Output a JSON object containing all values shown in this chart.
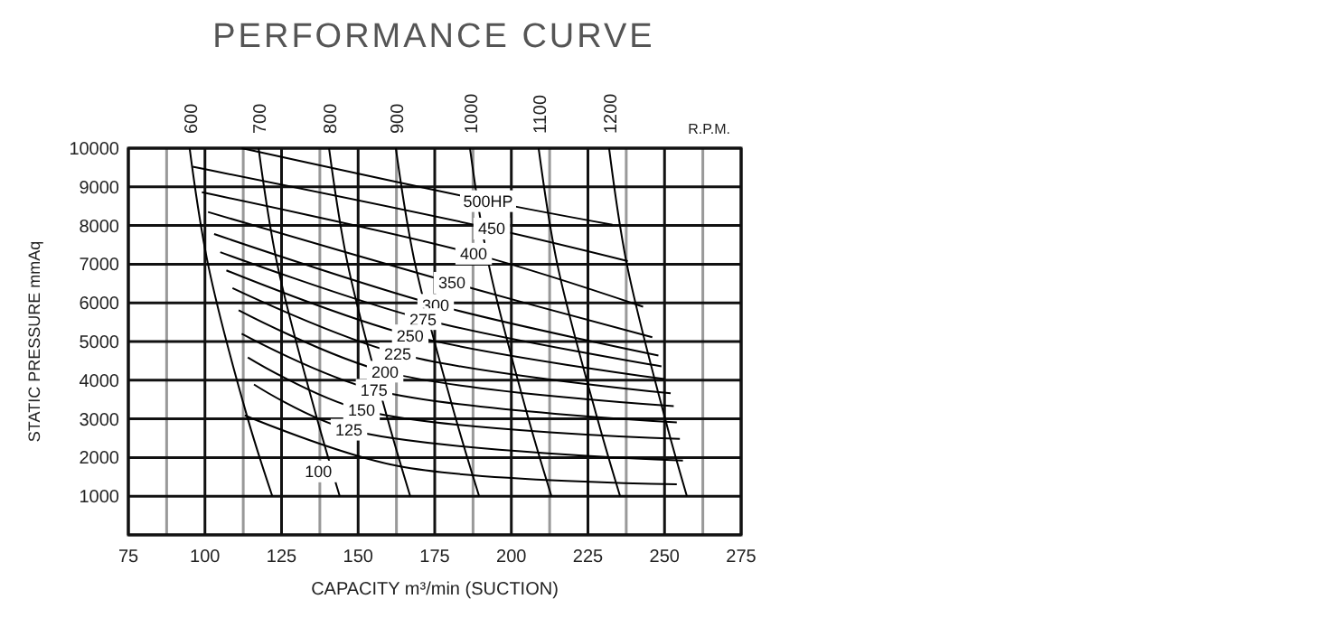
{
  "chart_data": {
    "type": "line",
    "title": "PERFORMANCE CURVE",
    "xlabel": "CAPACITY m³/min (SUCTION)",
    "ylabel": "STATIC PRESSURE mmAq",
    "xlim": [
      75,
      275
    ],
    "ylim": [
      0,
      10000
    ],
    "xticks": [
      75,
      {
        "value": 87.5,
        "label": null
      },
      100,
      {
        "value": 112.5,
        "label": null
      },
      125,
      {
        "value": 137.5,
        "label": null
      },
      150,
      {
        "value": 162.5,
        "label": null
      },
      175,
      {
        "value": 187.5,
        "label": null
      },
      200,
      {
        "value": 212.5,
        "label": null
      },
      225,
      {
        "value": 237.5,
        "label": null
      },
      250,
      {
        "value": 262.5,
        "label": null
      },
      275
    ],
    "yticks": [
      1000,
      2000,
      3000,
      4000,
      5000,
      6000,
      7000,
      8000,
      9000,
      10000
    ],
    "grid": true,
    "series": [
      {
        "name": "600",
        "color": "#000000",
        "x": [
          95,
          101,
          114,
          122
        ],
        "values": [
          10000,
          7000,
          3000,
          1000
        ]
      },
      {
        "name": "700",
        "color": "#000000",
        "x": [
          117.5,
          123.6,
          136.6,
          144
        ],
        "values": [
          10000,
          7000,
          3000,
          1000
        ]
      },
      {
        "name": "800",
        "color": "#000000",
        "x": [
          140.5,
          146.6,
          159.6,
          167
        ],
        "values": [
          10000,
          7000,
          3000,
          1000
        ]
      },
      {
        "name": "900",
        "color": "#000000",
        "x": [
          162.3,
          168.6,
          181.9,
          189.5
        ],
        "values": [
          10000,
          7000,
          3000,
          1000
        ]
      },
      {
        "name": "1000",
        "color": "#000000",
        "x": [
          186.5,
          192.6,
          205.6,
          213.1
        ],
        "values": [
          10000,
          7000,
          3000,
          1000
        ]
      },
      {
        "name": "1100",
        "color": "#000000",
        "x": [
          208.9,
          215,
          228.1,
          235.5
        ],
        "values": [
          10000,
          7000,
          3000,
          1000
        ]
      },
      {
        "name": "1200",
        "color": "#000000",
        "x": [
          231.9,
          237.7,
          250.2,
          257.3
        ],
        "values": [
          10000,
          7000,
          3000,
          1000
        ]
      },
      {
        "color": "#000000",
        "x": [
          112,
          192.4,
          233
        ],
        "values": [
          10000,
          8630,
          8020
        ]
      },
      {
        "color": "#000000",
        "x": [
          96,
          193.6,
          238
        ],
        "values": [
          9520,
          7920,
          7080
        ]
      },
      {
        "color": "#000000",
        "x": [
          99,
          187.7,
          243
        ],
        "values": [
          8860,
          7270,
          5900
        ]
      },
      {
        "color": "#000000",
        "x": [
          101,
          180.6,
          246
        ],
        "values": [
          8350,
          6520,
          5110
        ]
      },
      {
        "color": "#000000",
        "x": [
          103,
          175.3,
          248
        ],
        "values": [
          7780,
          5950,
          4640
        ]
      },
      {
        "color": "#000000",
        "x": [
          105,
          171.2,
          249
        ],
        "values": [
          7310,
          5580,
          4360
        ]
      },
      {
        "color": "#000000",
        "x": [
          107,
          167,
          250
        ],
        "values": [
          6840,
          5160,
          4030
        ]
      },
      {
        "color": "#000000",
        "x": [
          109,
          162.9,
          252
        ],
        "values": [
          6380,
          4690,
          3660
        ]
      },
      {
        "color": "#000000",
        "x": [
          111,
          158.8,
          253
        ],
        "values": [
          5810,
          4220,
          3330
        ]
      },
      {
        "color": "#000000",
        "x": [
          112,
          155.2,
          254
        ],
        "values": [
          5200,
          3750,
          2910
        ]
      },
      {
        "color": "#000000",
        "x": [
          114,
          151.1,
          255
        ],
        "values": [
          4590,
          3230,
          2480
        ]
      },
      {
        "color": "#000000",
        "x": [
          116,
          147,
          256
        ],
        "values": [
          3890,
          2720,
          1920
        ]
      },
      {
        "color": "#000000",
        "x": [
          113,
          163,
          254
        ],
        "values": [
          3090,
          1780,
          1310
        ]
      }
    ],
    "annotations": [
      "R.P.M.",
      {
        "text": "500HP",
        "x": 192.4,
        "y": 8630
      },
      {
        "text": "450",
        "x": 193.6,
        "y": 7920
      },
      {
        "text": "400",
        "x": 187.7,
        "y": 7270
      },
      {
        "text": "350",
        "x": 180.6,
        "y": 6520
      },
      {
        "text": "300",
        "x": 175.3,
        "y": 5950
      },
      {
        "text": "275",
        "x": 171.2,
        "y": 5580
      },
      {
        "text": "250",
        "x": 167,
        "y": 5160
      },
      {
        "text": "225",
        "x": 162.9,
        "y": 4690
      },
      {
        "text": "200",
        "x": 158.8,
        "y": 4220
      },
      {
        "text": "175",
        "x": 155.2,
        "y": 3750
      },
      {
        "text": "150",
        "x": 151.1,
        "y": 3230
      },
      {
        "text": "125",
        "x": 147,
        "y": 2720
      },
      {
        "text": "100",
        "x": 137,
        "y": 1640
      }
    ]
  }
}
